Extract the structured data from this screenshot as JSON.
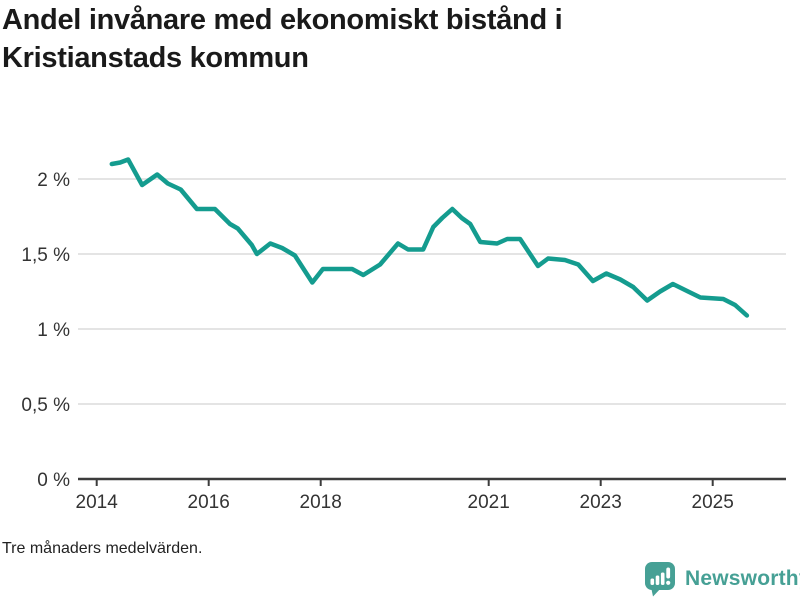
{
  "title": {
    "line1": "Andel invånare med ekonomiskt bistånd i",
    "line2": "Kristianstads kommun"
  },
  "footer": {
    "note": "Tre månaders medelvärden."
  },
  "brand": {
    "name": "Newsworthy",
    "color": "#46a095",
    "icon": "newsworthy-chart-bubble-icon"
  },
  "chart_data": {
    "type": "line",
    "title": "Andel invånare med ekonomiskt bistånd i Kristianstads kommun",
    "subtitle": "Tre månaders medelvärden.",
    "unit": "%",
    "grid": true,
    "legend": "none",
    "x_range": [
      2013.67,
      2026.31
    ],
    "y_range": [
      0,
      2.3
    ],
    "y_ticks": [
      {
        "value": 0,
        "label": "0 %"
      },
      {
        "value": 0.5,
        "label": "0,5 %"
      },
      {
        "value": 1,
        "label": "1 %"
      },
      {
        "value": 1.5,
        "label": "1,5 %"
      },
      {
        "value": 2,
        "label": "2 %"
      }
    ],
    "x_ticks": [
      {
        "value": 2014,
        "label": "2014"
      },
      {
        "value": 2016,
        "label": "2016"
      },
      {
        "value": 2018,
        "label": "2018"
      },
      {
        "value": 2021,
        "label": "2021"
      },
      {
        "value": 2023,
        "label": "2023"
      },
      {
        "value": 2025,
        "label": "2025"
      }
    ],
    "series": [
      {
        "name": "Andel invånare med ekonomiskt bistånd",
        "color": "#149c8f",
        "points": [
          [
            2014.27,
            2.1
          ],
          [
            2014.42,
            2.11
          ],
          [
            2014.56,
            2.13
          ],
          [
            2014.81,
            1.96
          ],
          [
            2015.08,
            2.03
          ],
          [
            2015.27,
            1.97
          ],
          [
            2015.5,
            1.93
          ],
          [
            2015.79,
            1.8
          ],
          [
            2016.11,
            1.8
          ],
          [
            2016.38,
            1.7
          ],
          [
            2016.52,
            1.67
          ],
          [
            2016.77,
            1.56
          ],
          [
            2016.86,
            1.5
          ],
          [
            2017.1,
            1.57
          ],
          [
            2017.31,
            1.54
          ],
          [
            2017.54,
            1.49
          ],
          [
            2017.85,
            1.31
          ],
          [
            2018.04,
            1.4
          ],
          [
            2018.56,
            1.4
          ],
          [
            2018.76,
            1.36
          ],
          [
            2019.06,
            1.43
          ],
          [
            2019.38,
            1.57
          ],
          [
            2019.56,
            1.53
          ],
          [
            2019.83,
            1.53
          ],
          [
            2020.01,
            1.68
          ],
          [
            2020.17,
            1.74
          ],
          [
            2020.35,
            1.8
          ],
          [
            2020.52,
            1.74
          ],
          [
            2020.67,
            1.7
          ],
          [
            2020.85,
            1.58
          ],
          [
            2021.15,
            1.57
          ],
          [
            2021.33,
            1.6
          ],
          [
            2021.56,
            1.6
          ],
          [
            2021.88,
            1.42
          ],
          [
            2022.06,
            1.47
          ],
          [
            2022.36,
            1.46
          ],
          [
            2022.6,
            1.43
          ],
          [
            2022.86,
            1.32
          ],
          [
            2023.1,
            1.37
          ],
          [
            2023.35,
            1.33
          ],
          [
            2023.58,
            1.28
          ],
          [
            2023.83,
            1.19
          ],
          [
            2024.06,
            1.25
          ],
          [
            2024.29,
            1.3
          ],
          [
            2024.56,
            1.25
          ],
          [
            2024.78,
            1.21
          ],
          [
            2025.19,
            1.2
          ],
          [
            2025.4,
            1.16
          ],
          [
            2025.61,
            1.09
          ]
        ]
      }
    ]
  }
}
